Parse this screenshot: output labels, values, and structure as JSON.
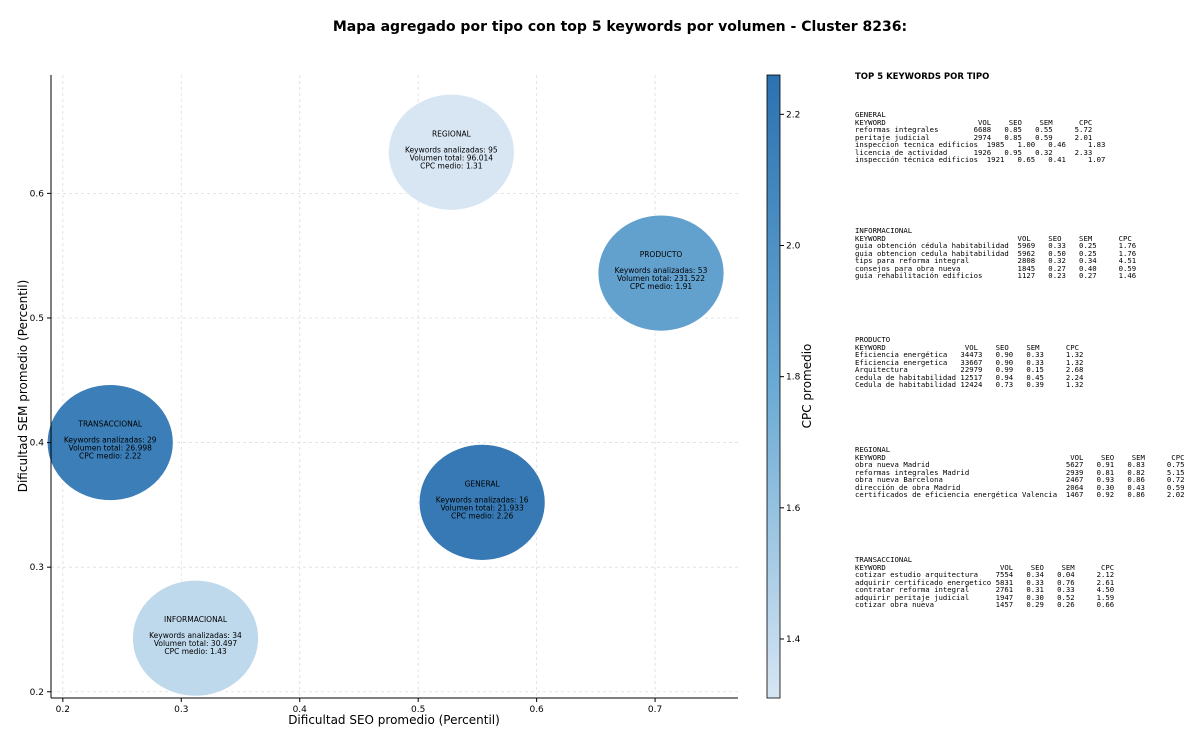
{
  "title": "Mapa agregado por tipo con top 5 keywords por volumen - Cluster 8236:",
  "chart_data": {
    "type": "scatter",
    "xlabel": "Dificultad SEO promedio (Percentil)",
    "ylabel": "Dificultad SEM promedio (Percentil)",
    "xlim": [
      0.19,
      0.77
    ],
    "ylim": [
      0.195,
      0.695
    ],
    "xticks": [
      "0.2",
      "0.3",
      "0.4",
      "0.5",
      "0.6",
      "0.7"
    ],
    "yticks": [
      "0.2",
      "0.3",
      "0.4",
      "0.5",
      "0.6"
    ],
    "grid": true,
    "colorbar": {
      "label": "CPC promedio",
      "min": 1.31,
      "max": 2.26,
      "ticks": [
        "1.4",
        "1.6",
        "1.8",
        "2.0",
        "2.2"
      ],
      "colors": [
        "#d6e5f3",
        "#6aaad4",
        "#2c72b0"
      ]
    },
    "points": [
      {
        "name": "REGIONAL",
        "x": 0.528,
        "y": 0.633,
        "cpc_value": 1.31,
        "line1": "Keywords analizadas: 95",
        "line2": "Volumen total: 96.014",
        "line3": "CPC medio: 1.31"
      },
      {
        "name": "PRODUCTO",
        "x": 0.705,
        "y": 0.536,
        "cpc_value": 1.91,
        "line1": "Keywords analizadas: 53",
        "line2": "Volumen total: 231.522",
        "line3": "CPC medio: 1.91"
      },
      {
        "name": "TRANSACCIONAL",
        "x": 0.24,
        "y": 0.4,
        "cpc_value": 2.22,
        "line1": "Keywords analizadas: 29",
        "line2": "Volumen total: 26.998",
        "line3": "CPC medio: 2.22"
      },
      {
        "name": "GENERAL",
        "x": 0.554,
        "y": 0.352,
        "cpc_value": 2.26,
        "line1": "Keywords analizadas: 16",
        "line2": "Volumen total: 21.933",
        "line3": "CPC medio: 2.26"
      },
      {
        "name": "INFORMACIONAL",
        "x": 0.312,
        "y": 0.243,
        "cpc_value": 1.43,
        "line1": "Keywords analizadas: 34",
        "line2": "Volumen total: 30.497",
        "line3": "CPC medio: 1.43"
      }
    ]
  },
  "tables_title": "TOP 5 KEYWORDS POR TIPO",
  "tables": [
    {
      "id": "general",
      "text": "GENERAL\nKEYWORD                     VOL    SEO    SEM      CPC\nreformas integrales        6688   0.85   0.55     5.72\nperitaje judicial          2974   0.85   0.59     2.01\ninspeccion tecnica edificios  1985   1.00   0.46     1.83\nlicencia de actividad      1926   0.95   0.32     2.33\ninspección técnica edificios  1921   0.65   0.41     1.07"
    },
    {
      "id": "informacional",
      "text": "INFORMACIONAL\nKEYWORD                              VOL    SEO    SEM      CPC\nguia obtención cédula habitabilidad  5969   0.33   0.25     1.76\nguia obtencion cedula habitabilidad  5962   0.50   0.25     1.76\ntips para reforma integral           2808   0.32   0.34     4.51\nconsejos para obra nueva             1845   0.27   0.40     0.59\nguía rehabilitación edificios        1127   0.23   0.27     1.46"
    },
    {
      "id": "producto",
      "text": "PRODUCTO\nKEYWORD                  VOL    SEO    SEM      CPC\nEficiencia energética   34473   0.90   0.33     1.32\nEficiencia energetica   33667   0.90   0.33     1.32\nArquitectura            22979   0.99   0.15     2.68\ncedula de habitabilidad 12517   0.94   0.45     2.24\nCedula de habitabilidad 12424   0.73   0.39     1.32"
    },
    {
      "id": "regional",
      "text": "REGIONAL\nKEYWORD                                          VOL    SEO    SEM      CPC\nobra nueva Madrid                               5627   0.91   0.83     0.75\nreformas integrales Madrid                      2939   0.81   0.82     5.15\nobra nueva Barcelona                            2467   0.93   0.86     0.72\ndirección de obra Madrid                        2064   0.30   0.43     0.59\ncertificados de eficiencia energética Valencia  1467   0.92   0.86     2.02"
    },
    {
      "id": "transaccional",
      "text": "TRANSACCIONAL\nKEYWORD                          VOL    SEO    SEM      CPC\ncotizar estudio arquitectura    7554   0.34   0.04     2.12\nadquirir certificado energetico 5831   0.33   0.76     2.61\ncontratar reforma integral      2761   0.31   0.33     4.50\nadquirir peritaje judicial      1947   0.30   0.52     1.59\ncotizar obra nueva              1457   0.29   0.26     0.66"
    }
  ]
}
